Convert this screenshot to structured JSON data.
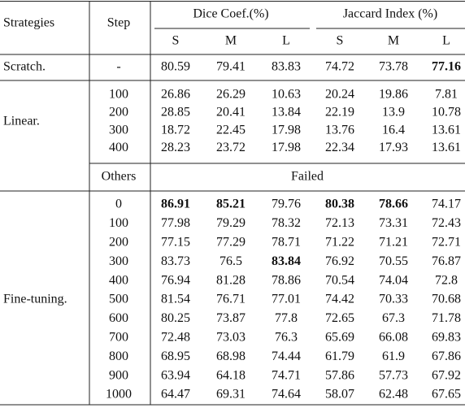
{
  "header": {
    "strategies": "Strategies",
    "step": "Step",
    "groups": [
      "Dice Coef.(%)",
      "Jaccard Index (%)"
    ],
    "subcolumns": [
      "S",
      "M",
      "L",
      "S",
      "M",
      "L"
    ]
  },
  "sections": [
    {
      "strategy": "Scratch.",
      "rows": [
        {
          "step": "-",
          "cells": [
            "80.59",
            "79.41",
            "83.83",
            "74.72",
            "73.78",
            {
              "text": "77.16",
              "bold": true
            }
          ]
        }
      ]
    },
    {
      "strategy": "Linear.",
      "rows": [
        {
          "step": "100",
          "cells": [
            "26.86",
            "26.29",
            "10.63",
            "20.24",
            "19.86",
            "7.81"
          ]
        },
        {
          "step": "200",
          "cells": [
            "28.85",
            "20.41",
            "13.84",
            "22.19",
            "13.9",
            "10.78"
          ]
        },
        {
          "step": "300",
          "cells": [
            "18.72",
            "22.45",
            "17.98",
            "13.76",
            "16.4",
            "13.61"
          ]
        },
        {
          "step": "400",
          "cells": [
            "28.23",
            "23.72",
            "17.98",
            "22.34",
            "17.93",
            "13.61"
          ]
        }
      ],
      "note": {
        "step": "Others",
        "text": "Failed"
      }
    },
    {
      "strategy": "Fine-tuning.",
      "rows": [
        {
          "step": "0",
          "cells": [
            {
              "text": "86.91",
              "bold": true
            },
            {
              "text": "85.21",
              "bold": true
            },
            "79.76",
            {
              "text": "80.38",
              "bold": true
            },
            {
              "text": "78.66",
              "bold": true
            },
            "74.17"
          ]
        },
        {
          "step": "100",
          "cells": [
            "77.98",
            "79.29",
            "78.32",
            "72.13",
            "73.31",
            "72.43"
          ]
        },
        {
          "step": "200",
          "cells": [
            "77.15",
            "77.29",
            "78.71",
            "71.22",
            "71.21",
            "72.71"
          ]
        },
        {
          "step": "300",
          "cells": [
            "83.73",
            "76.5",
            {
              "text": "83.84",
              "bold": true
            },
            "76.92",
            "70.55",
            "76.87"
          ]
        },
        {
          "step": "400",
          "cells": [
            "76.94",
            "81.28",
            "78.86",
            "70.54",
            "74.04",
            "72.8"
          ]
        },
        {
          "step": "500",
          "cells": [
            "81.54",
            "76.71",
            "77.01",
            "74.42",
            "70.33",
            "70.68"
          ]
        },
        {
          "step": "600",
          "cells": [
            "80.25",
            "73.87",
            "77.8",
            "72.65",
            "67.3",
            "71.78"
          ]
        },
        {
          "step": "700",
          "cells": [
            "72.48",
            "73.03",
            "76.3",
            "65.69",
            "66.08",
            "69.83"
          ]
        },
        {
          "step": "800",
          "cells": [
            "68.95",
            "68.98",
            "74.44",
            "61.79",
            "61.9",
            "67.86"
          ]
        },
        {
          "step": "900",
          "cells": [
            "63.94",
            "64.18",
            "74.71",
            "57.86",
            "57.73",
            "67.92"
          ]
        },
        {
          "step": "1000",
          "cells": [
            "64.47",
            "69.31",
            "74.64",
            "58.07",
            "62.48",
            "67.65"
          ]
        }
      ]
    }
  ]
}
